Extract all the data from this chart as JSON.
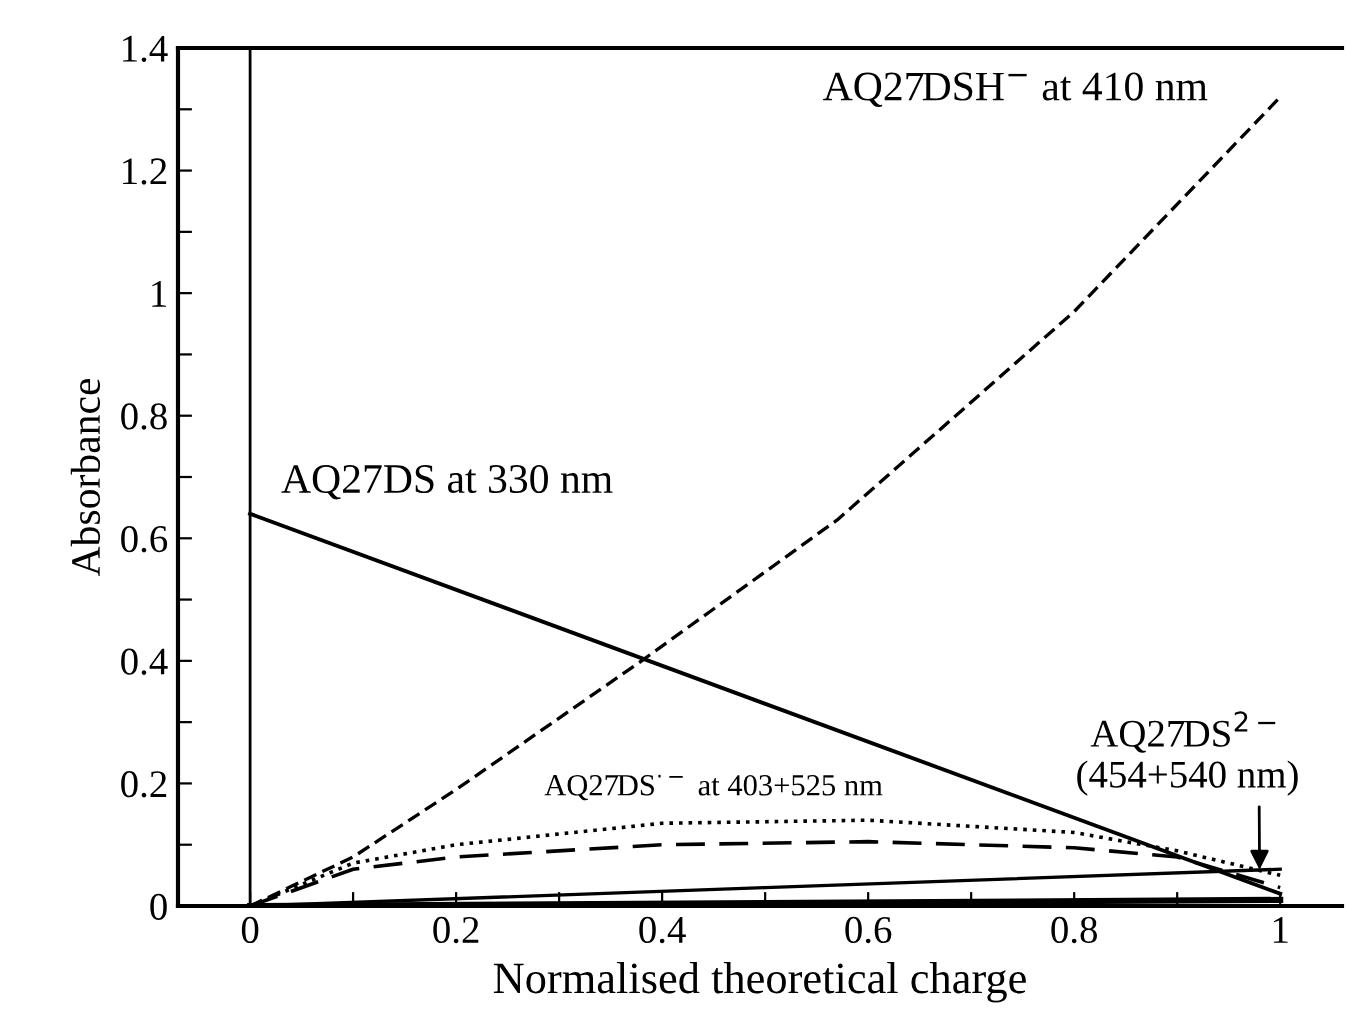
{
  "chart_data": {
    "type": "line",
    "xlabel": "Normalised theoretical charge",
    "ylabel": "Absorbance",
    "xlim": [
      -0.07,
      1.06
    ],
    "ylim": [
      0,
      1.4
    ],
    "xticks": [
      0,
      {
        "value": 0.1,
        "label": null
      },
      0.2,
      {
        "value": 0.3,
        "label": null
      },
      0.4,
      {
        "value": 0.5,
        "label": null
      },
      0.6,
      {
        "value": 0.7,
        "label": null
      },
      0.8,
      {
        "value": 0.9,
        "label": null
      },
      1
    ],
    "yticks": [
      0,
      {
        "value": 0.1,
        "label": null
      },
      0.2,
      {
        "value": 0.3,
        "label": null
      },
      0.4,
      {
        "value": 0.5,
        "label": null
      },
      0.6,
      {
        "value": 0.7,
        "label": null
      },
      0.8,
      {
        "value": 0.9,
        "label": null
      },
      1,
      {
        "value": 1.1,
        "label": null
      },
      1.2,
      {
        "value": 1.3,
        "label": null
      },
      1.4
    ],
    "grid": false,
    "legend": false,
    "marker": "none",
    "series": [
      {
        "name": "AQ27DS at 330 nm",
        "color": "#000000",
        "line_style": "solid",
        "x": [
          0,
          1
        ],
        "values": [
          0.64,
          0.02
        ]
      },
      {
        "name": "AQ27DSH$^{−}$ at 410 nm",
        "color": "#000000",
        "line_style": "dashed",
        "x": [
          0,
          0.1,
          0.2,
          0.38,
          0.57,
          0.8,
          1
        ],
        "values": [
          0,
          0.08,
          0.19,
          0.4,
          0.63,
          0.97,
          1.32
        ]
      },
      {
        "name": "AQ27DS$^{·−}$ at 403+525 nm",
        "color": "#000000",
        "line_style": "dotted",
        "x": [
          0,
          0.1,
          0.2,
          0.4,
          0.6,
          0.8,
          0.9,
          1
        ],
        "values": [
          0,
          0.07,
          0.1,
          0.135,
          0.14,
          0.12,
          0.09,
          0.05
        ]
      },
      {
        "color": "#000000",
        "line_style": "dashed",
        "x": [
          0,
          0.1,
          0.2,
          0.4,
          0.6,
          0.8,
          0.9,
          1
        ],
        "values": [
          0,
          0.06,
          0.08,
          0.1,
          0.105,
          0.095,
          0.08,
          0.03
        ]
      },
      {
        "color": "#000000",
        "line_style": "solid",
        "x": [
          0,
          0.5,
          1
        ],
        "values": [
          0,
          0.03,
          0.06
        ]
      },
      {
        "color": "#000000",
        "line_style": "solid",
        "x": [
          0,
          1
        ],
        "values": [
          0,
          0.01
        ]
      }
    ],
    "ref_lines": [
      {
        "axis": "x",
        "value": 0,
        "color": "#000000",
        "line_style": "solid"
      }
    ],
    "annotations": [
      {
        "text": "AQ27DS$^{2−}$\n(454+540 nm)",
        "x": 0.98,
        "y": 0.05
      }
    ]
  }
}
